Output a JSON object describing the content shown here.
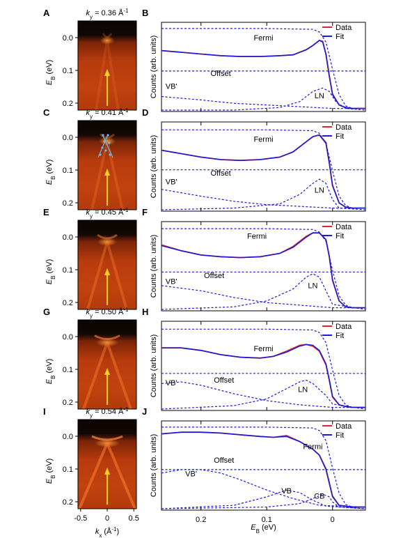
{
  "figure": {
    "left_tick_labels": [
      "0.0",
      "0.1",
      "0.2"
    ],
    "left_ylabel_main": "E",
    "left_ylabel_sub": "B",
    "left_ylabel_unit": " (eV)",
    "kx_tick_labels": [
      "-0.5",
      "0",
      "0.5"
    ],
    "kx_label_main": "k",
    "kx_label_sub": "x",
    "kx_label_unit": " (Å",
    "kx_label_sup": "-1",
    "kx_label_close": ")",
    "right_ylabel": "Counts (arb. units)",
    "eb_tick_labels": [
      "0.2",
      "0.1",
      "0"
    ],
    "eb_label_main": "E",
    "eb_label_sub": "B",
    "eb_label_unit": " (eV)",
    "legend_data": "Data",
    "legend_fit": "Fit",
    "colors": {
      "data": "#e8202a",
      "fit": "#1a1adb",
      "arrow": "#ffd21a",
      "guide": "#6fb6e8"
    }
  },
  "rows": [
    {
      "left_label": "A",
      "right_label": "B",
      "ky_prefix": "k",
      "ky_sub": "y",
      "ky_value": " = 0.36 Å",
      "ky_sup": "-1",
      "curve_labels": [
        "Fermi",
        "Offset",
        "VB'",
        "LN"
      ]
    },
    {
      "left_label": "C",
      "right_label": "D",
      "ky_prefix": "k",
      "ky_sub": "y",
      "ky_value": " = 0.41 Å",
      "ky_sup": "-1",
      "curve_labels": [
        "Fermi",
        "Offset",
        "VB'",
        "LN"
      ]
    },
    {
      "left_label": "E",
      "right_label": "F",
      "ky_prefix": "k",
      "ky_sub": "y",
      "ky_value": " = 0.45 Å",
      "ky_sup": "-1",
      "curve_labels": [
        "Fermi",
        "Offset",
        "VB'",
        "LN"
      ]
    },
    {
      "left_label": "G",
      "right_label": "H",
      "ky_prefix": "k",
      "ky_sub": "y",
      "ky_value": " = 0.50 Å",
      "ky_sup": "-1",
      "curve_labels": [
        "Fermi",
        "Offset",
        "VB'",
        "LN"
      ]
    },
    {
      "left_label": "I",
      "right_label": "J",
      "ky_prefix": "k",
      "ky_sub": "y",
      "ky_value": " = 0.54 Å",
      "ky_sup": "-1",
      "curve_labels": [
        "Fermi",
        "Offset",
        "VB'",
        "VB",
        "CB"
      ]
    }
  ],
  "chart_data": [
    {
      "type": "line",
      "panel": "B",
      "xlabel": "E_B (eV)",
      "ylabel": "Counts (arb. units)",
      "xlim": [
        0.26,
        -0.05
      ],
      "ylim": [
        0,
        1
      ],
      "legend": "top-right",
      "series": [
        {
          "name": "Data",
          "x": [
            0.26,
            0.23,
            0.2,
            0.17,
            0.14,
            0.11,
            0.08,
            0.06,
            0.04,
            0.03,
            0.02,
            0.015,
            0.01,
            0.005,
            0.0,
            -0.01,
            -0.02,
            -0.03,
            -0.05
          ],
          "y": [
            0.7,
            0.68,
            0.66,
            0.64,
            0.63,
            0.63,
            0.64,
            0.65,
            0.71,
            0.76,
            0.82,
            0.81,
            0.65,
            0.4,
            0.18,
            0.06,
            0.03,
            0.02,
            0.02
          ]
        },
        {
          "name": "Fit",
          "x": [
            0.26,
            0.23,
            0.2,
            0.17,
            0.14,
            0.11,
            0.08,
            0.06,
            0.04,
            0.03,
            0.02,
            0.015,
            0.01,
            0.005,
            0.0,
            -0.01,
            -0.02,
            -0.03,
            -0.05
          ],
          "y": [
            0.7,
            0.68,
            0.66,
            0.64,
            0.63,
            0.63,
            0.64,
            0.65,
            0.71,
            0.76,
            0.82,
            0.8,
            0.66,
            0.41,
            0.19,
            0.06,
            0.03,
            0.02,
            0.02
          ]
        },
        {
          "name": "Fermi",
          "x": [
            0.26,
            0.1,
            0.03,
            0.02,
            0.01,
            0.0,
            -0.01,
            -0.02,
            -0.03,
            -0.05
          ],
          "y": [
            0.96,
            0.96,
            0.95,
            0.92,
            0.8,
            0.48,
            0.18,
            0.05,
            0.02,
            0.02
          ]
        },
        {
          "name": "Offset",
          "x": [
            0.26,
            -0.05
          ],
          "y": [
            0.46,
            0.46
          ]
        },
        {
          "name": "VB'",
          "x": [
            0.26,
            0.2,
            0.15,
            0.1,
            0.05,
            0.0,
            -0.05
          ],
          "y": [
            0.16,
            0.12,
            0.08,
            0.06,
            0.04,
            0.02,
            0.02
          ]
        },
        {
          "name": "LN",
          "x": [
            0.26,
            0.15,
            0.08,
            0.05,
            0.03,
            0.015,
            0.005,
            -0.005,
            -0.02,
            -0.05
          ],
          "y": [
            0.0,
            0.0,
            0.03,
            0.1,
            0.22,
            0.26,
            0.22,
            0.1,
            0.02,
            0.0
          ]
        }
      ]
    },
    {
      "type": "line",
      "panel": "D",
      "xlabel": "E_B (eV)",
      "ylabel": "Counts (arb. units)",
      "xlim": [
        0.26,
        -0.05
      ],
      "ylim": [
        0,
        1
      ],
      "legend": "top-right",
      "series": [
        {
          "name": "Data",
          "x": [
            0.26,
            0.23,
            0.2,
            0.17,
            0.14,
            0.11,
            0.08,
            0.06,
            0.04,
            0.03,
            0.02,
            0.01,
            0.005,
            0.0,
            -0.01,
            -0.02,
            -0.03,
            -0.05
          ],
          "y": [
            0.7,
            0.66,
            0.62,
            0.59,
            0.58,
            0.59,
            0.62,
            0.68,
            0.8,
            0.86,
            0.88,
            0.78,
            0.55,
            0.28,
            0.08,
            0.03,
            0.02,
            0.02
          ]
        },
        {
          "name": "Fit",
          "x": [
            0.26,
            0.23,
            0.2,
            0.17,
            0.14,
            0.11,
            0.08,
            0.06,
            0.04,
            0.03,
            0.02,
            0.01,
            0.005,
            0.0,
            -0.01,
            -0.02,
            -0.03,
            -0.05
          ],
          "y": [
            0.7,
            0.66,
            0.62,
            0.59,
            0.58,
            0.59,
            0.62,
            0.68,
            0.8,
            0.86,
            0.88,
            0.79,
            0.56,
            0.29,
            0.08,
            0.03,
            0.02,
            0.02
          ]
        },
        {
          "name": "Fermi",
          "x": [
            0.26,
            0.1,
            0.03,
            0.02,
            0.01,
            0.0,
            -0.01,
            -0.02,
            -0.03,
            -0.05
          ],
          "y": [
            0.94,
            0.94,
            0.93,
            0.9,
            0.78,
            0.46,
            0.16,
            0.05,
            0.02,
            0.02
          ]
        },
        {
          "name": "Offset",
          "x": [
            0.26,
            -0.05
          ],
          "y": [
            0.47,
            0.47
          ]
        },
        {
          "name": "VB'",
          "x": [
            0.26,
            0.2,
            0.15,
            0.1,
            0.05,
            0.0,
            -0.05
          ],
          "y": [
            0.24,
            0.16,
            0.1,
            0.06,
            0.04,
            0.02,
            0.02
          ]
        },
        {
          "name": "LN",
          "x": [
            0.26,
            0.15,
            0.08,
            0.05,
            0.03,
            0.02,
            0.01,
            0.0,
            -0.01,
            -0.05
          ],
          "y": [
            0.0,
            0.02,
            0.07,
            0.18,
            0.31,
            0.36,
            0.31,
            0.12,
            0.02,
            0.0
          ]
        }
      ]
    },
    {
      "type": "line",
      "panel": "F",
      "xlabel": "E_B (eV)",
      "ylabel": "Counts (arb. units)",
      "xlim": [
        0.26,
        -0.05
      ],
      "ylim": [
        0,
        1
      ],
      "legend": "top-right",
      "series": [
        {
          "name": "Data",
          "x": [
            0.26,
            0.23,
            0.2,
            0.17,
            0.14,
            0.11,
            0.08,
            0.06,
            0.04,
            0.03,
            0.02,
            0.01,
            0.005,
            0.0,
            -0.01,
            -0.02,
            -0.03,
            -0.05
          ],
          "y": [
            0.76,
            0.69,
            0.64,
            0.62,
            0.61,
            0.62,
            0.66,
            0.74,
            0.86,
            0.9,
            0.9,
            0.82,
            0.62,
            0.34,
            0.1,
            0.03,
            0.02,
            0.02
          ]
        },
        {
          "name": "Fit",
          "x": [
            0.26,
            0.23,
            0.2,
            0.17,
            0.14,
            0.11,
            0.08,
            0.06,
            0.04,
            0.03,
            0.02,
            0.01,
            0.005,
            0.0,
            -0.01,
            -0.02,
            -0.03,
            -0.05
          ],
          "y": [
            0.75,
            0.69,
            0.64,
            0.62,
            0.61,
            0.62,
            0.66,
            0.73,
            0.85,
            0.9,
            0.9,
            0.82,
            0.63,
            0.35,
            0.1,
            0.03,
            0.02,
            0.02
          ]
        },
        {
          "name": "Fermi",
          "x": [
            0.26,
            0.1,
            0.03,
            0.02,
            0.01,
            0.0,
            -0.01,
            -0.02,
            -0.03,
            -0.05
          ],
          "y": [
            0.95,
            0.95,
            0.94,
            0.91,
            0.8,
            0.46,
            0.16,
            0.05,
            0.02,
            0.02
          ]
        },
        {
          "name": "Offset",
          "x": [
            0.26,
            -0.05
          ],
          "y": [
            0.44,
            0.44
          ]
        },
        {
          "name": "VB'",
          "x": [
            0.26,
            0.2,
            0.15,
            0.1,
            0.05,
            0.0,
            -0.05
          ],
          "y": [
            0.28,
            0.22,
            0.14,
            0.08,
            0.05,
            0.02,
            0.02
          ]
        },
        {
          "name": "LN",
          "x": [
            0.26,
            0.15,
            0.1,
            0.06,
            0.04,
            0.03,
            0.02,
            0.01,
            0.0,
            -0.05
          ],
          "y": [
            0.0,
            0.03,
            0.1,
            0.24,
            0.38,
            0.42,
            0.38,
            0.22,
            0.06,
            0.0
          ]
        }
      ]
    },
    {
      "type": "line",
      "panel": "H",
      "xlabel": "E_B (eV)",
      "ylabel": "Counts (arb. units)",
      "xlim": [
        0.26,
        -0.05
      ],
      "ylim": [
        0,
        1
      ],
      "legend": "top-right",
      "series": [
        {
          "name": "Data",
          "x": [
            0.26,
            0.23,
            0.2,
            0.17,
            0.14,
            0.11,
            0.09,
            0.07,
            0.05,
            0.04,
            0.03,
            0.02,
            0.01,
            0.005,
            0.0,
            -0.01,
            -0.02,
            -0.03,
            -0.05
          ],
          "y": [
            0.72,
            0.72,
            0.69,
            0.64,
            0.61,
            0.6,
            0.62,
            0.68,
            0.75,
            0.76,
            0.74,
            0.68,
            0.52,
            0.34,
            0.14,
            0.05,
            0.03,
            0.02,
            0.02
          ]
        },
        {
          "name": "Fit",
          "x": [
            0.26,
            0.23,
            0.2,
            0.17,
            0.14,
            0.11,
            0.09,
            0.07,
            0.05,
            0.04,
            0.03,
            0.02,
            0.01,
            0.005,
            0.0,
            -0.01,
            -0.02,
            -0.03,
            -0.05
          ],
          "y": [
            0.72,
            0.72,
            0.69,
            0.64,
            0.61,
            0.6,
            0.62,
            0.67,
            0.74,
            0.76,
            0.75,
            0.69,
            0.53,
            0.35,
            0.15,
            0.05,
            0.03,
            0.02,
            0.02
          ]
        },
        {
          "name": "Fermi",
          "x": [
            0.26,
            0.1,
            0.03,
            0.02,
            0.01,
            0.0,
            -0.01,
            -0.02,
            -0.03,
            -0.05
          ],
          "y": [
            0.94,
            0.94,
            0.93,
            0.9,
            0.78,
            0.46,
            0.16,
            0.05,
            0.02,
            0.02
          ]
        },
        {
          "name": "Offset",
          "x": [
            0.26,
            -0.05
          ],
          "y": [
            0.42,
            0.42
          ]
        },
        {
          "name": "VB'",
          "x": [
            0.26,
            0.23,
            0.2,
            0.15,
            0.1,
            0.05,
            0.0,
            -0.05
          ],
          "y": [
            0.3,
            0.32,
            0.28,
            0.18,
            0.1,
            0.05,
            0.02,
            0.02
          ]
        },
        {
          "name": "LN",
          "x": [
            0.26,
            0.15,
            0.1,
            0.07,
            0.05,
            0.04,
            0.03,
            0.01,
            0.0,
            -0.05
          ],
          "y": [
            0.0,
            0.04,
            0.12,
            0.24,
            0.32,
            0.34,
            0.3,
            0.16,
            0.06,
            0.0
          ]
        }
      ]
    },
    {
      "type": "line",
      "panel": "J",
      "xlabel": "E_B (eV)",
      "ylabel": "Counts (arb. units)",
      "xlim": [
        0.26,
        -0.05
      ],
      "ylim": [
        0,
        1
      ],
      "legend": "top-right",
      "series": [
        {
          "name": "Data",
          "x": [
            0.26,
            0.23,
            0.2,
            0.17,
            0.14,
            0.11,
            0.09,
            0.07,
            0.05,
            0.03,
            0.02,
            0.01,
            0.005,
            0.0,
            -0.01,
            -0.02,
            -0.03,
            -0.05
          ],
          "y": [
            0.88,
            0.9,
            0.9,
            0.89,
            0.87,
            0.85,
            0.84,
            0.86,
            0.79,
            0.7,
            0.63,
            0.46,
            0.3,
            0.14,
            0.04,
            0.03,
            0.02,
            0.02
          ]
        },
        {
          "name": "Fit",
          "x": [
            0.26,
            0.23,
            0.2,
            0.17,
            0.14,
            0.11,
            0.09,
            0.07,
            0.05,
            0.03,
            0.02,
            0.01,
            0.005,
            0.0,
            -0.01,
            -0.02,
            -0.03,
            -0.05
          ],
          "y": [
            0.88,
            0.9,
            0.9,
            0.89,
            0.87,
            0.85,
            0.84,
            0.85,
            0.79,
            0.7,
            0.63,
            0.47,
            0.31,
            0.15,
            0.04,
            0.03,
            0.02,
            0.02
          ]
        },
        {
          "name": "Fermi",
          "x": [
            0.26,
            0.1,
            0.03,
            0.02,
            0.01,
            0.0,
            -0.01,
            -0.02,
            -0.03,
            -0.05
          ],
          "y": [
            0.96,
            0.96,
            0.95,
            0.92,
            0.8,
            0.48,
            0.18,
            0.05,
            0.02,
            0.02
          ]
        },
        {
          "name": "Offset",
          "x": [
            0.26,
            -0.05
          ],
          "y": [
            0.46,
            0.46
          ]
        },
        {
          "name": "VB'",
          "x": [
            0.26,
            0.23,
            0.2,
            0.17,
            0.14,
            0.1,
            0.06,
            0.02,
            -0.05
          ],
          "y": [
            0.42,
            0.46,
            0.46,
            0.42,
            0.34,
            0.22,
            0.12,
            0.04,
            0.02
          ]
        },
        {
          "name": "VB",
          "x": [
            0.26,
            0.15,
            0.1,
            0.07,
            0.05,
            0.03,
            0.01,
            -0.05
          ],
          "y": [
            0.0,
            0.04,
            0.14,
            0.22,
            0.19,
            0.1,
            0.03,
            0.0
          ]
        },
        {
          "name": "CB",
          "x": [
            0.26,
            0.1,
            0.05,
            0.03,
            0.015,
            0.005,
            0.0,
            -0.01,
            -0.05
          ],
          "y": [
            0.0,
            0.02,
            0.06,
            0.12,
            0.17,
            0.14,
            0.08,
            0.02,
            0.0
          ]
        }
      ]
    }
  ]
}
